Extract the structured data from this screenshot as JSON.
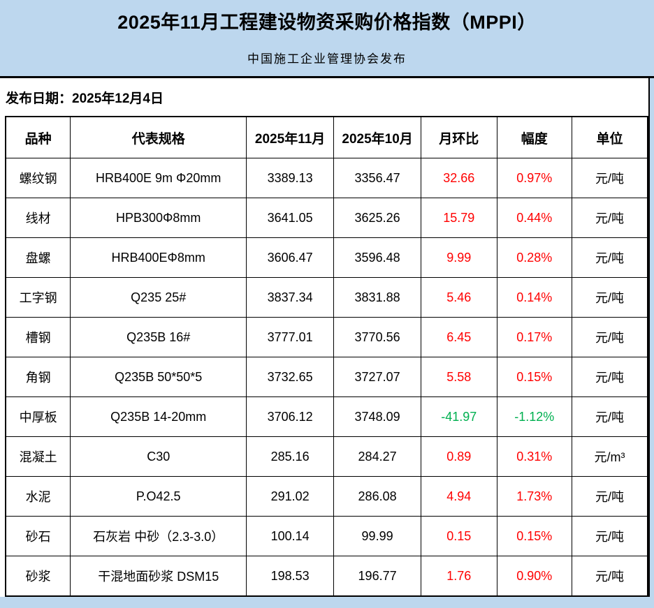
{
  "page": {
    "title": "2025年11月工程建设物资采购价格指数（MPPI）",
    "subtitle": "中国施工企业管理协会发布",
    "release_date": "发布日期：2025年12月4日"
  },
  "colors": {
    "page_background": "#BDD7EE",
    "table_background": "#FFFFFF",
    "border": "#000000",
    "increase_text": "#FF0000",
    "decrease_text": "#00B050"
  },
  "table": {
    "columns": [
      "品种",
      "代表规格",
      "2025年11月",
      "2025年10月",
      "月环比",
      "幅度",
      "单位"
    ],
    "rows": [
      {
        "variety": "螺纹钢",
        "spec": "HRB400E 9m Φ20mm",
        "nov": "3389.13",
        "oct": "3356.47",
        "mom": "32.66",
        "rate": "0.97%",
        "unit": "元/吨",
        "trend": "up"
      },
      {
        "variety": "线材",
        "spec": "HPB300Φ8mm",
        "nov": "3641.05",
        "oct": "3625.26",
        "mom": "15.79",
        "rate": "0.44%",
        "unit": "元/吨",
        "trend": "up"
      },
      {
        "variety": "盘螺",
        "spec": "HRB400EΦ8mm",
        "nov": "3606.47",
        "oct": "3596.48",
        "mom": "9.99",
        "rate": "0.28%",
        "unit": "元/吨",
        "trend": "up"
      },
      {
        "variety": "工字钢",
        "spec": "Q235 25#",
        "nov": "3837.34",
        "oct": "3831.88",
        "mom": "5.46",
        "rate": "0.14%",
        "unit": "元/吨",
        "trend": "up"
      },
      {
        "variety": "槽钢",
        "spec": "Q235B 16#",
        "nov": "3777.01",
        "oct": "3770.56",
        "mom": "6.45",
        "rate": "0.17%",
        "unit": "元/吨",
        "trend": "up"
      },
      {
        "variety": "角钢",
        "spec": "Q235B 50*50*5",
        "nov": "3732.65",
        "oct": "3727.07",
        "mom": "5.58",
        "rate": "0.15%",
        "unit": "元/吨",
        "trend": "up"
      },
      {
        "variety": "中厚板",
        "spec": "Q235B 14-20mm",
        "nov": "3706.12",
        "oct": "3748.09",
        "mom": "-41.97",
        "rate": "-1.12%",
        "unit": "元/吨",
        "trend": "down"
      },
      {
        "variety": "混凝土",
        "spec": "C30",
        "nov": "285.16",
        "oct": "284.27",
        "mom": "0.89",
        "rate": "0.31%",
        "unit": "元/m³",
        "trend": "up"
      },
      {
        "variety": "水泥",
        "spec": "P.O42.5",
        "nov": "291.02",
        "oct": "286.08",
        "mom": "4.94",
        "rate": "1.73%",
        "unit": "元/吨",
        "trend": "up"
      },
      {
        "variety": "砂石",
        "spec": "石灰岩 中砂（2.3-3.0）",
        "nov": "100.14",
        "oct": "99.99",
        "mom": "0.15",
        "rate": "0.15%",
        "unit": "元/吨",
        "trend": "up"
      },
      {
        "variety": "砂浆",
        "spec": "干混地面砂浆 DSM15",
        "nov": "198.53",
        "oct": "196.77",
        "mom": "1.76",
        "rate": "0.90%",
        "unit": "元/吨",
        "trend": "up"
      }
    ]
  }
}
